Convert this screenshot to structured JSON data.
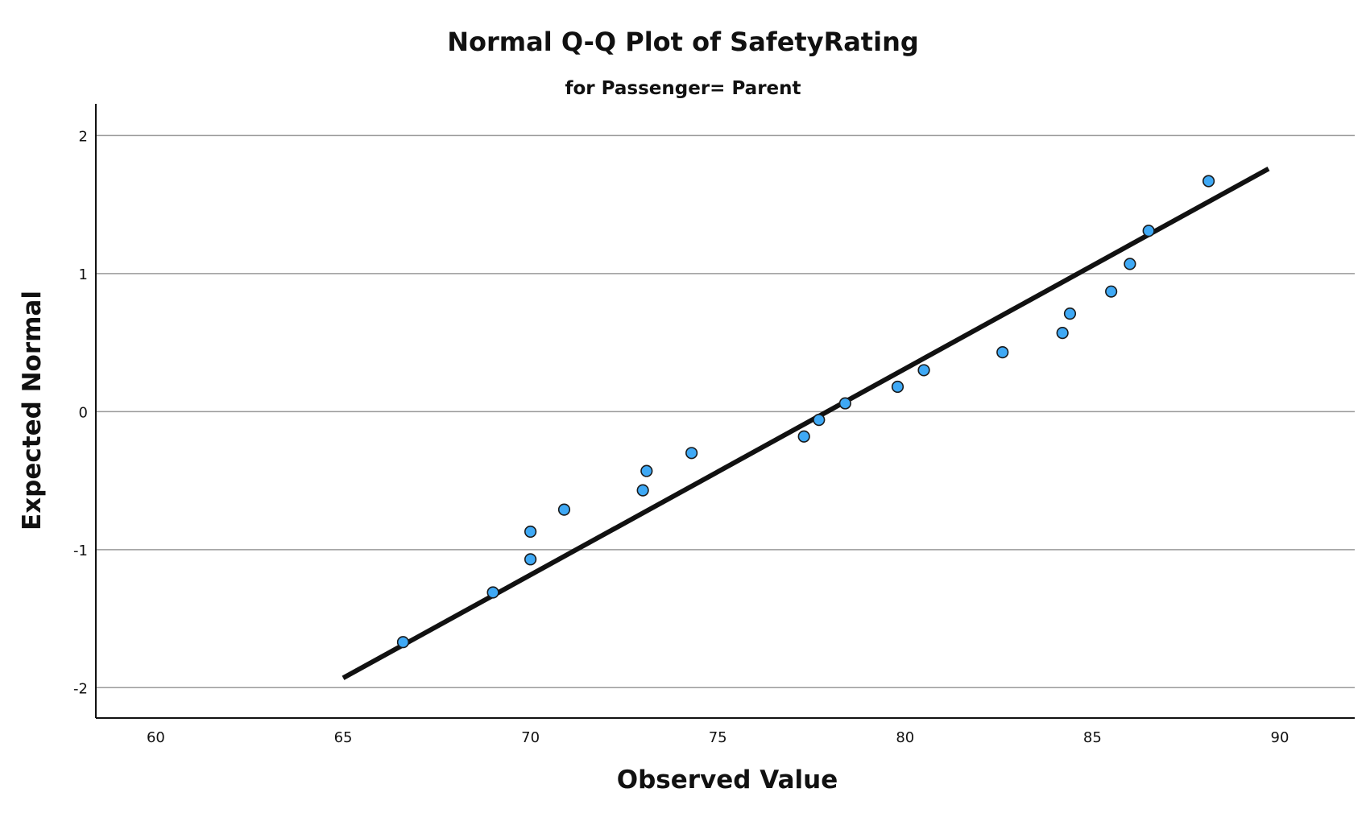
{
  "chart_data": {
    "type": "scatter",
    "title": "Normal Q-Q Plot of SafetyRating",
    "subtitle": "for Passenger= Parent",
    "xlabel": "Observed Value",
    "ylabel": "Expected Normal",
    "xlim": [
      58.4,
      92.0
    ],
    "ylim": [
      -2.22,
      2.23
    ],
    "x_ticks": [
      60,
      65,
      70,
      75,
      80,
      85,
      90
    ],
    "x_tick_labels": [
      "60",
      "65",
      "70",
      "75",
      "80",
      "85",
      "90"
    ],
    "y_ticks": [
      2,
      1,
      0,
      -1,
      -2
    ],
    "y_tick_labels": [
      "2",
      "1",
      "0",
      "-1",
      "-2"
    ],
    "grid": "horizontal",
    "point_color": "#3fa9f5",
    "line_color": "#111111",
    "reference_line": {
      "x": [
        65.0,
        89.7
      ],
      "y": [
        -1.93,
        1.76
      ]
    },
    "points": [
      {
        "x": 66.6,
        "y": -1.67
      },
      {
        "x": 69.0,
        "y": -1.31
      },
      {
        "x": 70.0,
        "y": -1.07
      },
      {
        "x": 70.0,
        "y": -0.87
      },
      {
        "x": 70.9,
        "y": -0.71
      },
      {
        "x": 73.0,
        "y": -0.57
      },
      {
        "x": 73.1,
        "y": -0.43
      },
      {
        "x": 74.3,
        "y": -0.3
      },
      {
        "x": 77.3,
        "y": -0.18
      },
      {
        "x": 77.7,
        "y": -0.06
      },
      {
        "x": 78.4,
        "y": 0.06
      },
      {
        "x": 79.8,
        "y": 0.18
      },
      {
        "x": 80.5,
        "y": 0.3
      },
      {
        "x": 82.6,
        "y": 0.43
      },
      {
        "x": 84.2,
        "y": 0.57
      },
      {
        "x": 84.4,
        "y": 0.71
      },
      {
        "x": 85.5,
        "y": 0.87
      },
      {
        "x": 86.0,
        "y": 1.07
      },
      {
        "x": 86.5,
        "y": 1.31
      },
      {
        "x": 88.1,
        "y": 1.67
      }
    ]
  }
}
